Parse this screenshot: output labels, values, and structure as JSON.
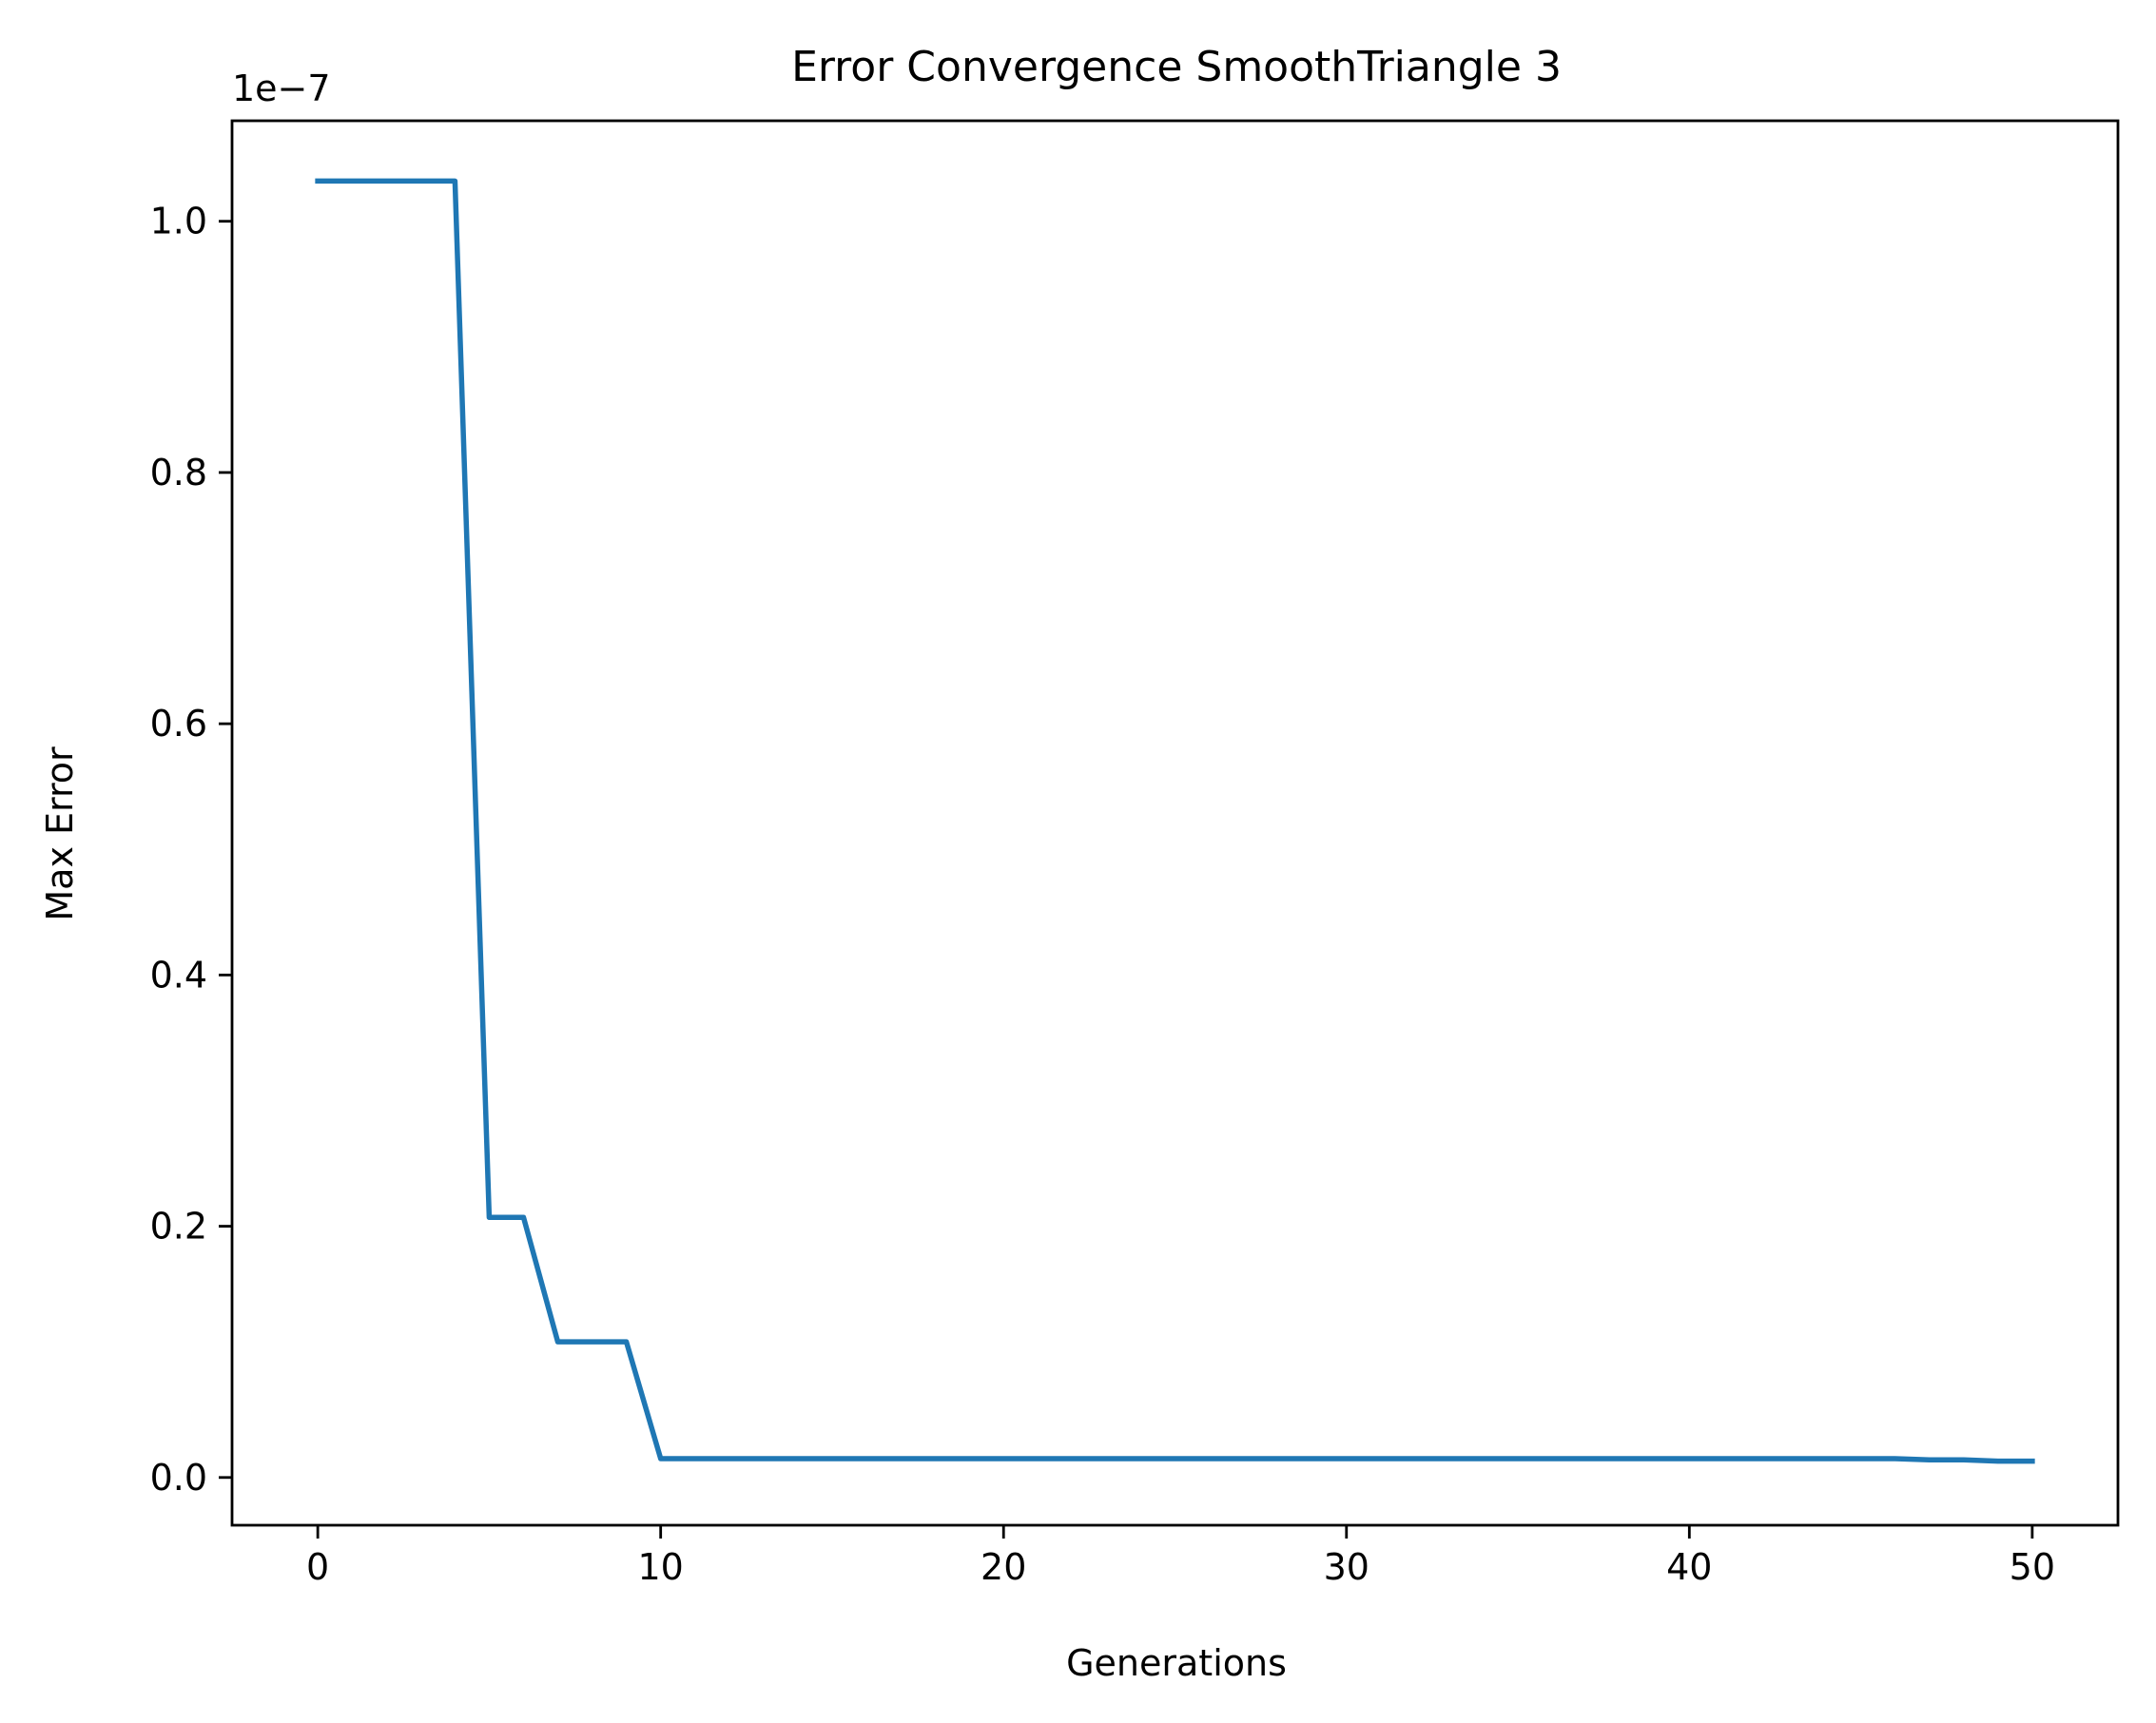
{
  "chart_data": {
    "type": "line",
    "title": "Error Convergence SmoothTriangle 3",
    "xlabel": "Generations",
    "ylabel": "Max Error",
    "y_offset_label": "1e−7",
    "xlim": [
      -2.5,
      52.5
    ],
    "ylim": [
      -0.038,
      1.08
    ],
    "x_ticks": [
      0,
      10,
      20,
      30,
      40,
      50
    ],
    "x_tick_labels": [
      "0",
      "10",
      "20",
      "30",
      "40",
      "50"
    ],
    "y_ticks": [
      0.0,
      0.2,
      0.4,
      0.6,
      0.8,
      1.0
    ],
    "y_tick_labels": [
      "0.0",
      "0.2",
      "0.4",
      "0.6",
      "0.8",
      "1.0"
    ],
    "grid": false,
    "series": [
      {
        "color": "#1f77b4",
        "x": [
          0,
          1,
          2,
          3,
          4,
          5,
          6,
          7,
          8,
          9,
          10,
          11,
          12,
          13,
          14,
          15,
          16,
          17,
          18,
          19,
          20,
          21,
          22,
          23,
          24,
          25,
          26,
          27,
          28,
          29,
          30,
          31,
          32,
          33,
          34,
          35,
          36,
          37,
          38,
          39,
          40,
          41,
          42,
          43,
          44,
          45,
          46,
          47,
          48,
          49,
          50
        ],
        "y": [
          1.032,
          1.032,
          1.032,
          1.032,
          1.032,
          0.207,
          0.207,
          0.108,
          0.108,
          0.108,
          0.015,
          0.015,
          0.015,
          0.015,
          0.015,
          0.015,
          0.015,
          0.015,
          0.015,
          0.015,
          0.015,
          0.015,
          0.015,
          0.015,
          0.015,
          0.015,
          0.015,
          0.015,
          0.015,
          0.015,
          0.015,
          0.015,
          0.015,
          0.015,
          0.015,
          0.015,
          0.015,
          0.015,
          0.015,
          0.015,
          0.015,
          0.015,
          0.015,
          0.015,
          0.015,
          0.015,
          0.015,
          0.014,
          0.014,
          0.013,
          0.013
        ]
      }
    ]
  }
}
